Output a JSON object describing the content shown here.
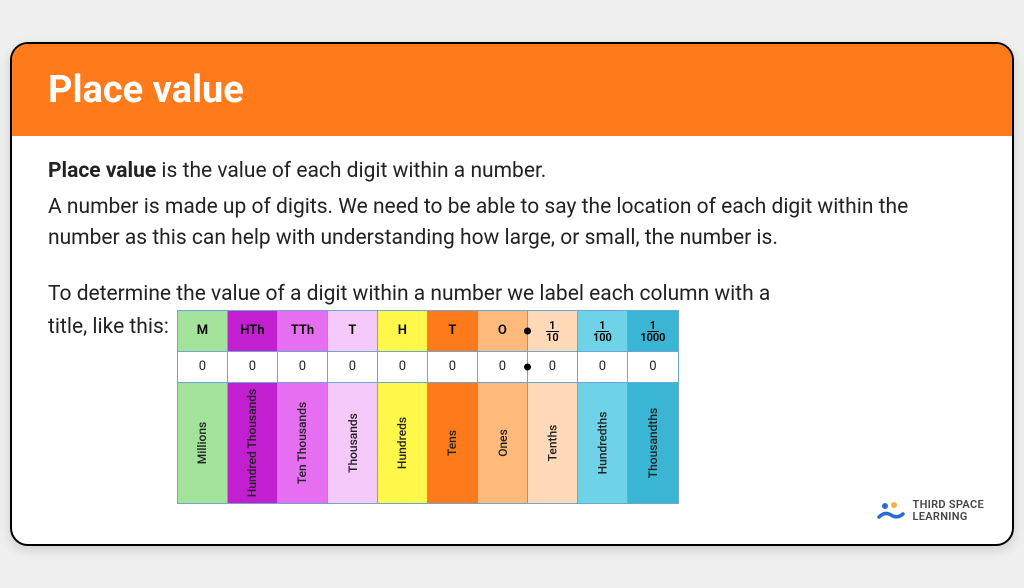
{
  "card": {
    "title": "Place value",
    "para1_bold": "Place value",
    "para1_rest": " is the value of each digit within a number.",
    "para2": "A number is made up of digits. We need to be able to say the location of each digit within the number as this can help with understanding how large, or small, the number is.",
    "para3_a": "To determine the value of a digit within a number we label each column with a title, like this:",
    "para3_lead": "title, like this:"
  },
  "table": {
    "columns": [
      {
        "abbr": "M",
        "digit": "0",
        "label": "Millions",
        "head_bg": "#a3e29a",
        "label_bg": "#a3e29a",
        "text": "#000000"
      },
      {
        "abbr": "HTh",
        "digit": "0",
        "label": "Hundred Thousands",
        "head_bg": "#c21fd1",
        "label_bg": "#c21fd1",
        "text": "#000000"
      },
      {
        "abbr": "TTh",
        "digit": "0",
        "label": "Ten Thousands",
        "head_bg": "#e56ff0",
        "label_bg": "#e56ff0",
        "text": "#000000"
      },
      {
        "abbr": "T",
        "digit": "0",
        "label": "Thousands",
        "head_bg": "#f5c9f9",
        "label_bg": "#f5c9f9",
        "text": "#000000"
      },
      {
        "abbr": "H",
        "digit": "0",
        "label": "Hundreds",
        "head_bg": "#fff84a",
        "label_bg": "#fff84a",
        "text": "#000000"
      },
      {
        "abbr": "T",
        "digit": "0",
        "label": "Tens",
        "head_bg": "#ff7a1a",
        "label_bg": "#ff7a1a",
        "text": "#000000"
      },
      {
        "abbr": "O",
        "digit": "0",
        "label": "Ones",
        "head_bg": "#ffb97a",
        "label_bg": "#ffb97a",
        "text": "#000000",
        "decimal_after": true
      },
      {
        "frac_num": "1",
        "frac_den": "10",
        "digit": "0",
        "label": "Tenths",
        "head_bg": "#ffd9b8",
        "label_bg": "#ffd9b8",
        "text": "#000000"
      },
      {
        "frac_num": "1",
        "frac_den": "100",
        "digit": "0",
        "label": "Hundredths",
        "head_bg": "#6fd3e8",
        "label_bg": "#6fd3e8",
        "text": "#000000"
      },
      {
        "frac_num": "1",
        "frac_den": "1000",
        "digit": "0",
        "label": "Thousandths",
        "head_bg": "#3ab5d4",
        "label_bg": "#3ab5d4",
        "text": "#000000"
      }
    ],
    "digit_bg": "#ffffff",
    "border_color": "#6aa7d6"
  },
  "logo": {
    "line1": "THIRD SPACE",
    "line2": "LEARNING",
    "colors": {
      "blue": "#2a6bd4",
      "yellow": "#f5b342",
      "light": "#a8cdea"
    }
  },
  "colors": {
    "header_bg": "#ff7a1a",
    "header_fg": "#ffffff",
    "card_bg": "#ffffff",
    "card_border": "#000000"
  }
}
